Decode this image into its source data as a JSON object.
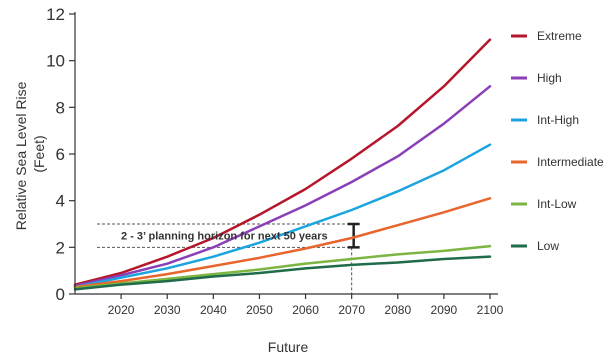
{
  "chart_data": {
    "type": "line",
    "title": "",
    "xlabel": "Future",
    "ylabel_line1": "Relative Sea Level Rise",
    "ylabel_line2": "(Feet)",
    "xlim": [
      2010,
      2100
    ],
    "ylim": [
      0,
      12
    ],
    "x": [
      2010,
      2020,
      2030,
      2040,
      2050,
      2060,
      2070,
      2080,
      2090,
      2100
    ],
    "x_ticks": [
      "2020",
      "2030",
      "2040",
      "2050",
      "2060",
      "2070",
      "2080",
      "2090",
      "2100"
    ],
    "y_ticks": [
      "0",
      "2",
      "4",
      "6",
      "8",
      "10",
      "12"
    ],
    "legend_position": "right",
    "series": [
      {
        "name": "Extreme",
        "color": "#b5162b",
        "values": [
          0.4,
          0.9,
          1.6,
          2.4,
          3.4,
          4.5,
          5.8,
          7.2,
          8.9,
          10.9
        ]
      },
      {
        "name": "High",
        "color": "#8a3fb8",
        "values": [
          0.35,
          0.8,
          1.3,
          2.0,
          2.9,
          3.8,
          4.8,
          5.9,
          7.3,
          8.9
        ]
      },
      {
        "name": "Int-High",
        "color": "#1aa5e0",
        "values": [
          0.3,
          0.7,
          1.1,
          1.6,
          2.2,
          2.9,
          3.6,
          4.4,
          5.3,
          6.4
        ]
      },
      {
        "name": "Intermediate",
        "color": "#e8652e",
        "values": [
          0.3,
          0.55,
          0.85,
          1.2,
          1.55,
          1.95,
          2.4,
          2.95,
          3.5,
          4.1
        ]
      },
      {
        "name": "Int-Low",
        "color": "#7db543",
        "values": [
          0.25,
          0.45,
          0.65,
          0.85,
          1.05,
          1.3,
          1.5,
          1.7,
          1.85,
          2.05
        ]
      },
      {
        "name": "Low",
        "color": "#1f6b4a",
        "values": [
          0.2,
          0.4,
          0.55,
          0.75,
          0.9,
          1.1,
          1.25,
          1.35,
          1.5,
          1.6
        ]
      }
    ],
    "annotation": {
      "text": "2 - 3’ planning horizon for next 50 years",
      "y_low": 2,
      "y_high": 3,
      "x_end": 2070
    }
  }
}
